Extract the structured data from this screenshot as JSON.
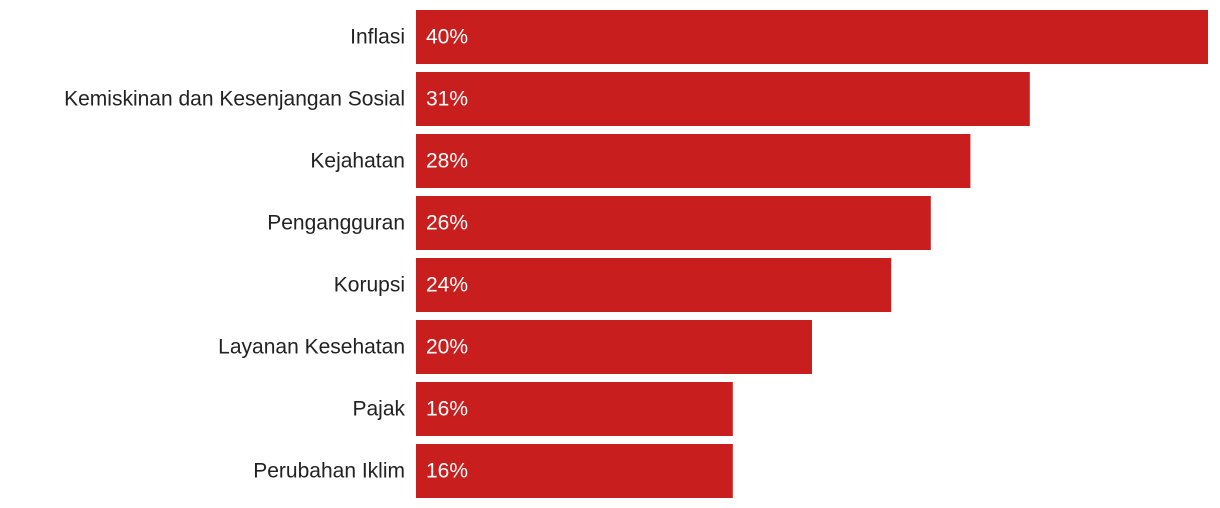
{
  "chart_data": {
    "type": "bar",
    "orientation": "horizontal",
    "categories": [
      "Inflasi",
      "Kemiskinan dan Kesenjangan Sosial",
      "Kejahatan",
      "Pengangguran",
      "Korupsi",
      "Layanan Kesehatan",
      "Pajak",
      "Perubahan Iklim"
    ],
    "values": [
      40,
      31,
      28,
      26,
      24,
      20,
      16,
      16
    ],
    "value_labels": [
      "40%",
      "31%",
      "28%",
      "26%",
      "24%",
      "20%",
      "16%",
      "16%"
    ],
    "color": "#c81e1e"
  }
}
